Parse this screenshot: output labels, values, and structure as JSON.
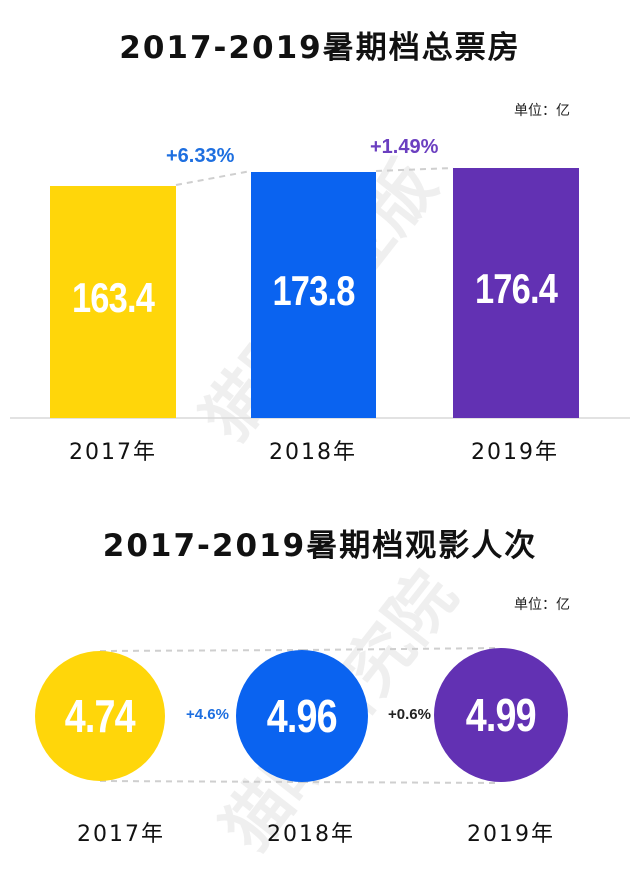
{
  "watermark": {
    "text_1": "猫眼专业版",
    "text_2": "猫眼研究院"
  },
  "colors": {
    "y2017": "#FFD60A",
    "y2018": "#0A63F0",
    "y2019": "#6231B3",
    "growth_blue": "#1E6FE0",
    "growth_purple": "#6B3FC0"
  },
  "chart_data": [
    {
      "type": "bar",
      "title": "2017-2019暑期档总票房",
      "unit": "单位：亿",
      "categories": [
        "2017年",
        "2018年",
        "2019年"
      ],
      "values": [
        163.4,
        173.8,
        176.4
      ],
      "value_labels": [
        "163.4",
        "173.8",
        "176.4"
      ],
      "growth_labels": [
        "+6.33%",
        "+1.49%"
      ],
      "ylim": [
        0,
        180
      ],
      "grid": false,
      "legend": "none"
    },
    {
      "type": "bubble",
      "title": "2017-2019暑期档观影人次",
      "unit": "单位：亿",
      "categories": [
        "2017年",
        "2018年",
        "2019年"
      ],
      "values": [
        4.74,
        4.96,
        4.99
      ],
      "value_labels": [
        "4.74",
        "4.96",
        "4.99"
      ],
      "growth_labels": [
        "+4.6%",
        "+0.6%"
      ],
      "grid": false,
      "legend": "none"
    }
  ]
}
